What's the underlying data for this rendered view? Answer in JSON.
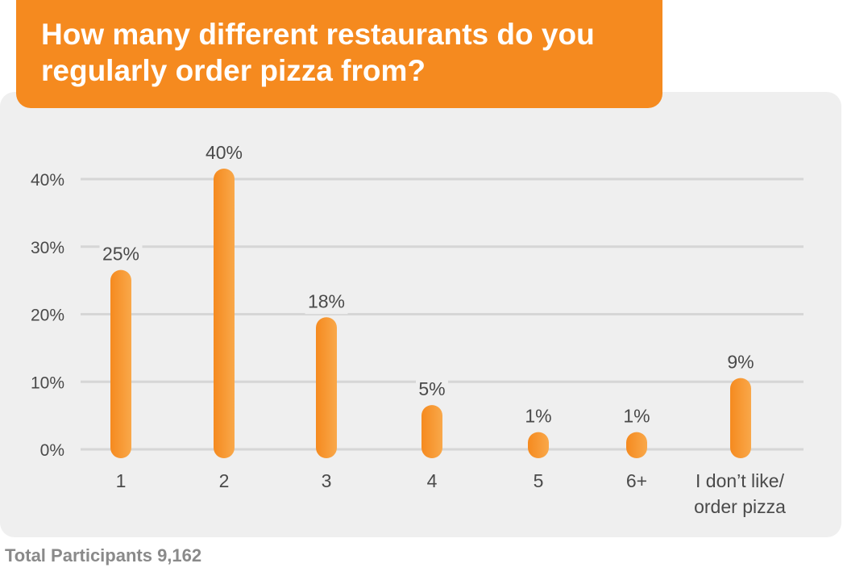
{
  "colors": {
    "accent": "#f58a1f",
    "accent_light": "#f9a84a",
    "panel_bg": "#efefef",
    "grid": "#d6d6d6",
    "label": "#4a4a4a",
    "footer": "#8a8a8a"
  },
  "chart_data": {
    "type": "bar",
    "title": "How many different restaurants do you regularly order pizza from?",
    "categories": [
      "1",
      "2",
      "3",
      "4",
      "5",
      "6+",
      "I don’t like/ order pizza"
    ],
    "category_lines": [
      [
        "1"
      ],
      [
        "2"
      ],
      [
        "3"
      ],
      [
        "4"
      ],
      [
        "5"
      ],
      [
        "6+"
      ],
      [
        "I don’t like/",
        "order pizza"
      ]
    ],
    "values": [
      25,
      40,
      18,
      5,
      1,
      1,
      9
    ],
    "value_labels": [
      "25%",
      "40%",
      "18%",
      "5%",
      "1%",
      "1%",
      "9%"
    ],
    "ylim": [
      0,
      40
    ],
    "yticks": [
      0,
      10,
      20,
      30,
      40
    ],
    "ytick_labels": [
      "0%",
      "10%",
      "20%",
      "30%",
      "40%"
    ],
    "grid": true,
    "legend": "none"
  },
  "footer": {
    "text": "Total Participants 9,162"
  }
}
